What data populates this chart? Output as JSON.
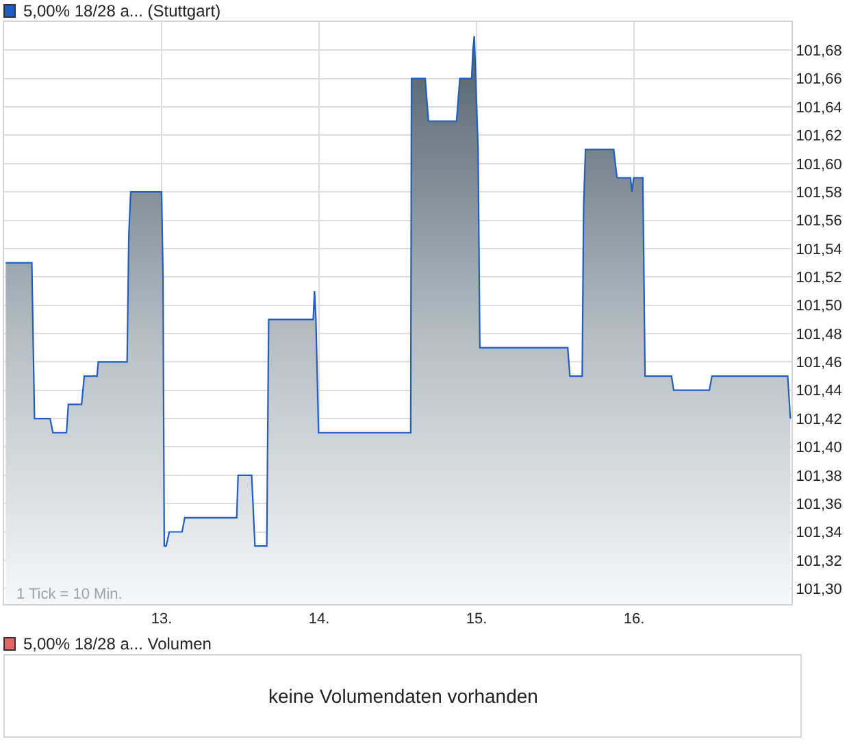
{
  "chart_data": [
    {
      "type": "area",
      "legend": "top left",
      "grid": true,
      "annotations": [
        "1 Tick = 10 Min."
      ],
      "xlim": [
        12.0,
        17.0
      ],
      "xticks": [
        {
          "value": 13,
          "label": "13."
        },
        {
          "value": 14,
          "label": "14."
        },
        {
          "value": 15,
          "label": "15."
        },
        {
          "value": 16,
          "label": "16."
        }
      ],
      "ylim": [
        101.289,
        101.7
      ],
      "yticks": [
        {
          "value": 101.3,
          "label": "101,30"
        },
        {
          "value": 101.32,
          "label": "101,32"
        },
        {
          "value": 101.34,
          "label": "101,34"
        },
        {
          "value": 101.36,
          "label": "101,36"
        },
        {
          "value": 101.38,
          "label": "101,38"
        },
        {
          "value": 101.4,
          "label": "101,40"
        },
        {
          "value": 101.42,
          "label": "101,42"
        },
        {
          "value": 101.44,
          "label": "101,44"
        },
        {
          "value": 101.46,
          "label": "101,46"
        },
        {
          "value": 101.48,
          "label": "101,48"
        },
        {
          "value": 101.5,
          "label": "101,50"
        },
        {
          "value": 101.52,
          "label": "101,52"
        },
        {
          "value": 101.54,
          "label": "101,54"
        },
        {
          "value": 101.56,
          "label": "101,56"
        },
        {
          "value": 101.58,
          "label": "101,58"
        },
        {
          "value": 101.6,
          "label": "101,60"
        },
        {
          "value": 101.62,
          "label": "101,62"
        },
        {
          "value": 101.64,
          "label": "101,64"
        },
        {
          "value": 101.66,
          "label": "101,66"
        },
        {
          "value": 101.68,
          "label": "101,68"
        }
      ],
      "series": [
        {
          "name": "5,00% 18/28 a... (Stuttgart)",
          "color": "#1f5cc4",
          "x": [
            12.01,
            12.176,
            12.193,
            12.292,
            12.31,
            12.396,
            12.408,
            12.492,
            12.509,
            12.59,
            12.598,
            12.781,
            12.792,
            12.804,
            13.0,
            13.009,
            13.017,
            13.029,
            13.049,
            13.13,
            13.147,
            13.477,
            13.486,
            13.572,
            13.593,
            13.668,
            13.68,
            13.963,
            13.971,
            13.98,
            13.997,
            14.015,
            14.582,
            14.587,
            14.674,
            14.695,
            14.873,
            14.894,
            14.969,
            14.977,
            14.986,
            15.01,
            15.021,
            15.579,
            15.593,
            15.671,
            15.68,
            15.692,
            15.871,
            15.892,
            15.978,
            15.987,
            15.998,
            16.056,
            16.07,
            16.238,
            16.252,
            16.478,
            16.495,
            16.976,
            16.993
          ],
          "values": [
            101.53,
            101.53,
            101.42,
            101.42,
            101.41,
            101.41,
            101.43,
            101.43,
            101.45,
            101.45,
            101.46,
            101.46,
            101.55,
            101.58,
            101.58,
            101.52,
            101.33,
            101.33,
            101.34,
            101.34,
            101.35,
            101.35,
            101.38,
            101.38,
            101.33,
            101.33,
            101.49,
            101.49,
            101.51,
            101.49,
            101.41,
            101.41,
            101.41,
            101.66,
            101.66,
            101.63,
            101.63,
            101.66,
            101.66,
            101.68,
            101.69,
            101.61,
            101.47,
            101.47,
            101.45,
            101.45,
            101.57,
            101.61,
            101.61,
            101.59,
            101.59,
            101.58,
            101.59,
            101.59,
            101.45,
            101.45,
            101.44,
            101.44,
            101.45,
            101.45,
            101.42
          ]
        }
      ]
    },
    {
      "type": "other",
      "title": "5,00% 18/28 a... Volumen",
      "color": "#e06666",
      "annotations": [
        "keine Volumendaten vorhanden"
      ]
    }
  ]
}
